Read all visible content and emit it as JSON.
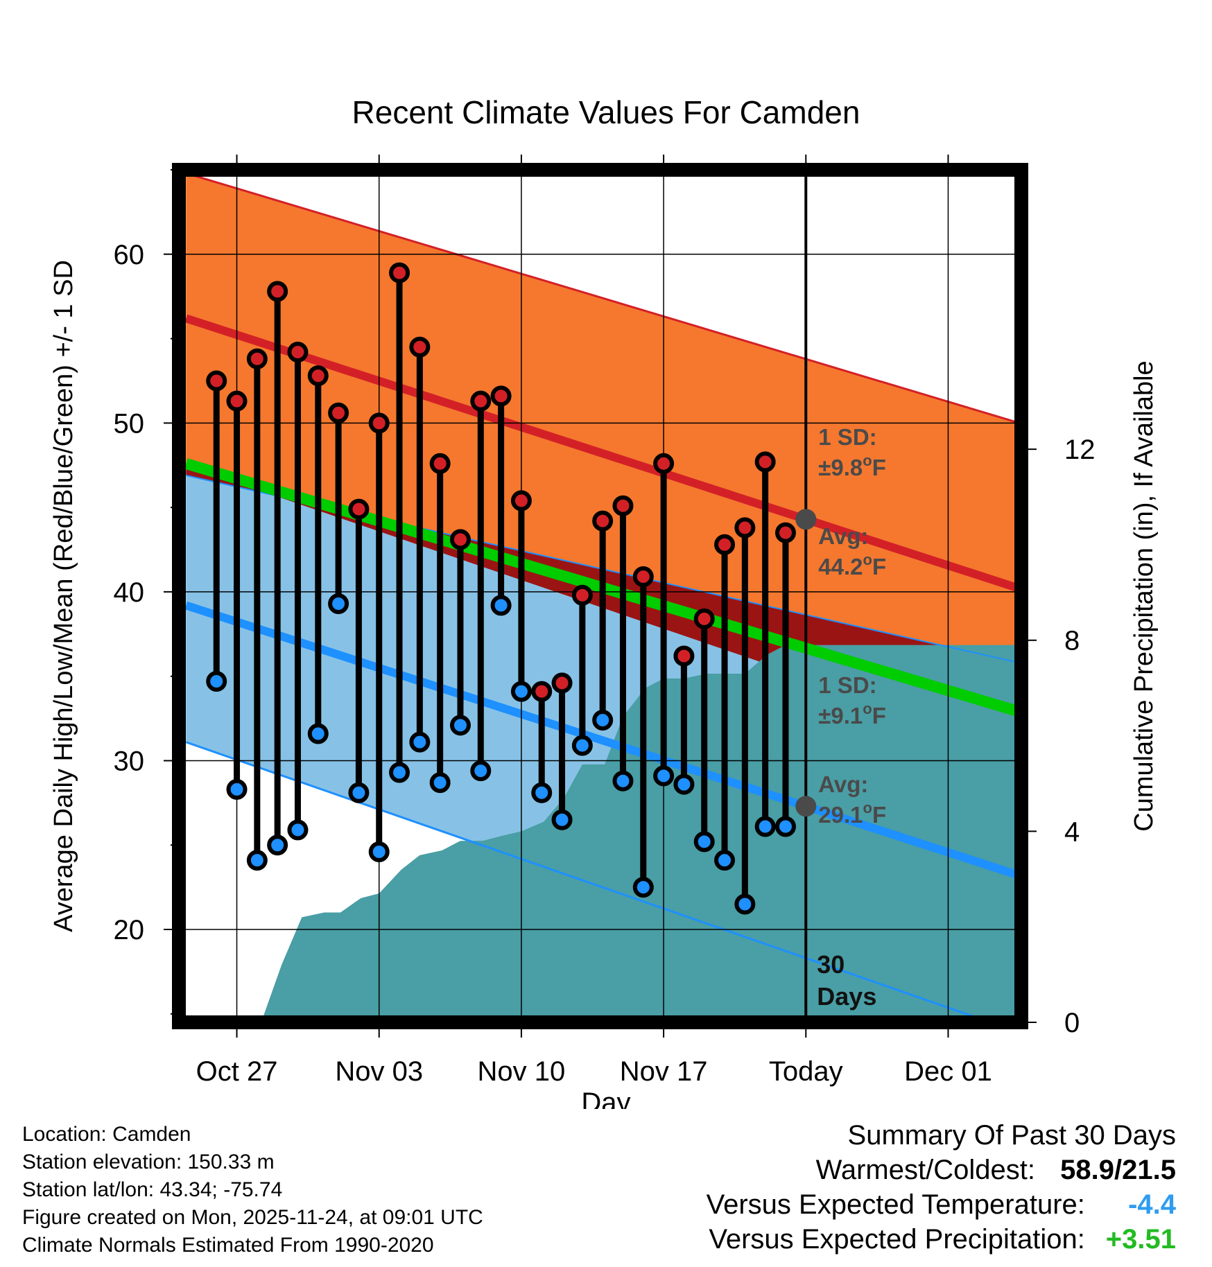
{
  "chart_data": {
    "type": "line",
    "title": "Recent Climate Values For Camden",
    "xlabel": "Day",
    "ylabel": "Average Daily High/Low/Mean (Red/Blue/Green) +/- 1 SD",
    "y2label": "Cumulative Precipitation (in), If Available",
    "ylim": [
      14.5,
      65
    ],
    "y2lim": [
      0,
      17.85
    ],
    "xlim": [
      -0.85,
      40.6
    ],
    "yticks": [
      "20",
      "30",
      "40",
      "50",
      "60"
    ],
    "y2ticks": [
      "0",
      "4",
      "8",
      "12"
    ],
    "xticks": [
      {
        "label": "Oct 27",
        "day": 2
      },
      {
        "label": "Nov 03",
        "day": 9
      },
      {
        "label": "Nov 10",
        "day": 16
      },
      {
        "label": "Nov 17",
        "day": 23
      },
      {
        "label": "Today",
        "day": 30
      },
      {
        "label": "Dec 01",
        "day": 37
      }
    ],
    "today_day": 30,
    "normals": {
      "days": [
        -0.5,
        40.5
      ],
      "high_upper": [
        64.8,
        50.0
      ],
      "high_mean": [
        56.2,
        40.2
      ],
      "high_lower": [
        47.5,
        30.6
      ],
      "mean": [
        47.6,
        32.9
      ],
      "low_upper": [
        46.9,
        35.8
      ],
      "low_mean": [
        39.2,
        23.2
      ],
      "low_lower": [
        31.1,
        13.9
      ]
    },
    "daily": {
      "days": [
        1,
        2,
        3,
        4,
        5,
        6,
        7,
        8,
        9,
        10,
        11,
        12,
        13,
        14,
        15,
        16,
        17,
        18,
        19,
        20,
        21,
        22,
        23,
        24,
        25,
        26,
        27,
        28,
        29
      ],
      "high": [
        52.5,
        51.3,
        53.8,
        57.8,
        54.2,
        52.8,
        50.6,
        44.9,
        50.0,
        58.9,
        54.5,
        47.6,
        43.1,
        51.3,
        51.6,
        45.4,
        34.1,
        34.6,
        39.8,
        44.2,
        45.1,
        40.9,
        47.6,
        36.2,
        38.4,
        42.8,
        43.8,
        47.7,
        43.5
      ],
      "low": [
        34.7,
        28.3,
        24.1,
        25.0,
        25.9,
        31.6,
        39.3,
        28.1,
        24.6,
        29.3,
        31.1,
        28.7,
        32.1,
        29.4,
        39.2,
        34.1,
        28.1,
        26.5,
        30.9,
        32.4,
        28.8,
        22.5,
        29.1,
        28.6,
        25.2,
        24.1,
        21.5,
        26.1,
        26.1
      ]
    },
    "precip_cumulative": {
      "days": [
        3.2,
        4.2,
        5.2,
        6.3,
        7.1,
        8.1,
        9.0,
        10.1,
        11.0,
        12.1,
        13.0,
        14.1,
        15.0,
        16.0,
        17.1,
        18.1,
        19.0,
        20.1,
        21.0,
        22.1,
        23.0,
        24.0,
        25.1,
        26.0,
        27.0,
        28.1,
        29.0,
        30.0,
        32.0,
        36.0,
        40.6
      ],
      "values": [
        0,
        1.2,
        2.2,
        2.3,
        2.3,
        2.6,
        2.7,
        3.2,
        3.5,
        3.6,
        3.8,
        3.8,
        3.9,
        4.0,
        4.2,
        4.7,
        5.4,
        5.4,
        6.4,
        7.0,
        7.2,
        7.2,
        7.3,
        7.3,
        7.3,
        7.7,
        7.9,
        7.9,
        7.9,
        7.9,
        7.9
      ]
    },
    "annotations": {
      "high_sd_title": "1 SD:",
      "high_sd_value": "±9.8",
      "high_avg_title": "Avg:",
      "high_avg_value": "44.2",
      "low_sd_title": "1 SD:",
      "low_sd_value": "±9.1",
      "low_avg_title": "Avg:",
      "low_avg_value": "29.1",
      "degree_unit": "o",
      "f_unit": "F",
      "days_number": "30",
      "days_word": "Days"
    },
    "colors": {
      "high_band": "#f5782e",
      "high_line": "#d32027",
      "low_band": "#87c2e6",
      "low_line": "#1e90ff",
      "mean_line": "#00cc00",
      "overlap": "#9b1414",
      "precip": "#4a9ea5",
      "high_marker": "#d32027",
      "low_marker": "#1e90ff",
      "avg_marker": "#4a4a4a"
    }
  },
  "footer": {
    "location": "Location: Camden",
    "elevation": "Station elevation: 150.33 m",
    "latlon": "Station lat/lon: 43.34; -75.74",
    "created": "Figure created on Mon, 2025-11-24, at 09:01 UTC",
    "normals": "Climate Normals Estimated From 1990-2020"
  },
  "summary": {
    "title": "Summary Of Past 30 Days",
    "warm_cold_label": "Warmest/Coldest:",
    "warm_cold_value": "58.9/21.5",
    "temp_label": "Versus Expected Temperature:",
    "temp_value": "-4.4",
    "temp_color": "#2e9cf0",
    "precip_label": "Versus Expected Precipitation:",
    "precip_value": "+3.51",
    "precip_color": "#22bb22"
  }
}
